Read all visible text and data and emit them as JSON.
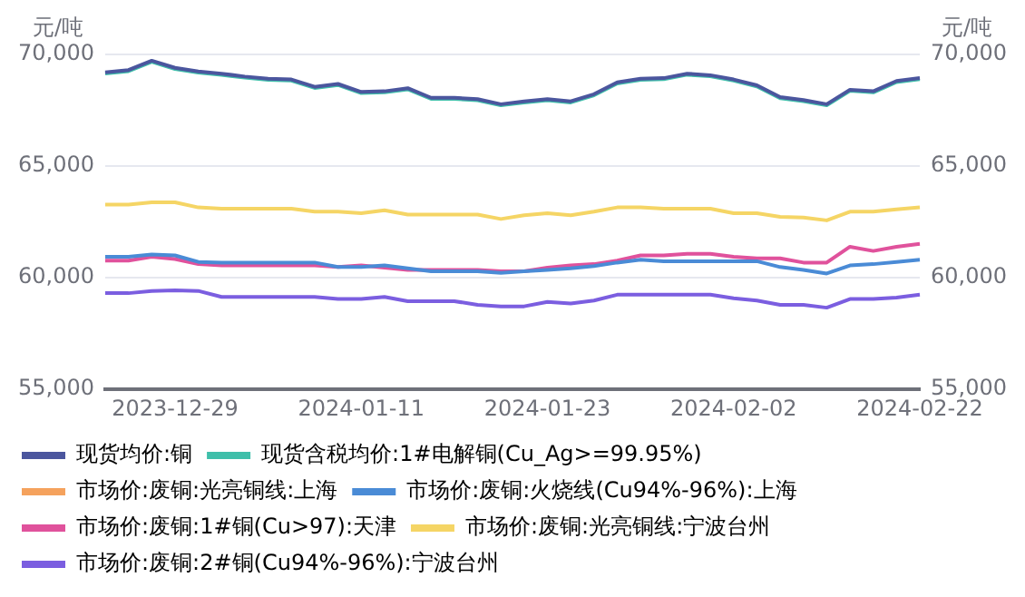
{
  "chart_data": {
    "type": "line",
    "ylabel": "元/吨",
    "y2label": "元/吨",
    "categories": [
      null,
      null,
      null,
      "2023-12-29",
      null,
      null,
      null,
      null,
      null,
      null,
      null,
      "2024-01-11",
      null,
      null,
      null,
      null,
      null,
      null,
      null,
      "2024-01-23",
      null,
      null,
      null,
      null,
      null,
      null,
      null,
      "2024-02-02",
      null,
      null,
      null,
      null,
      null,
      null,
      null,
      "2024-02-22"
    ],
    "ylim": [
      55000,
      70000
    ],
    "yticks": [
      {
        "value": 55000,
        "label": "55,000"
      },
      {
        "value": 60000,
        "label": "60,000"
      },
      {
        "value": 65000,
        "label": "65,000"
      },
      {
        "value": 70000,
        "label": "70,000"
      }
    ],
    "y2lim": [
      55000,
      70000
    ],
    "y2ticks": [
      {
        "value": 55000,
        "label": "55,000"
      },
      {
        "value": 60000,
        "label": "60,000"
      },
      {
        "value": 65000,
        "label": "65,000"
      },
      {
        "value": 70000,
        "label": "70,000"
      }
    ],
    "grid": "y",
    "legend": "bottom",
    "marker": "none",
    "line_style": "solid",
    "series": [
      {
        "name": "现货均价:铜",
        "color": "#4b569e",
        "values": [
          69200,
          69300,
          69720,
          69400,
          69240,
          69140,
          69010,
          68910,
          68880,
          68550,
          68680,
          68320,
          68350,
          68490,
          68060,
          68060,
          68000,
          67770,
          67900,
          68000,
          67900,
          68220,
          68750,
          68910,
          68940,
          69140,
          69070,
          68880,
          68620,
          68090,
          67960,
          67770,
          68420,
          68350,
          68810,
          68940
        ]
      },
      {
        "name": "现货含税均价:1#电解铜(Cu_Ag>=99.95%)",
        "color": "#3fbfaa",
        "values": [
          69150,
          69250,
          69670,
          69350,
          69190,
          69090,
          68960,
          68860,
          68830,
          68500,
          68630,
          68270,
          68300,
          68440,
          68010,
          68010,
          67950,
          67720,
          67850,
          67950,
          67850,
          68170,
          68700,
          68860,
          68890,
          69090,
          69020,
          68830,
          68570,
          68040,
          67910,
          67720,
          68370,
          68300,
          68760,
          68890
        ]
      },
      {
        "name": "市场价:废铜:光亮铜线:上海",
        "color": "#f5a25d",
        "values": [
          null,
          null,
          null,
          null,
          null,
          null,
          null,
          null,
          null,
          null,
          null,
          null,
          null,
          null,
          null,
          null,
          null,
          null,
          null,
          null,
          null,
          null,
          null,
          null,
          null,
          null,
          null,
          null,
          null,
          null,
          null,
          null,
          null,
          null,
          null,
          null
        ]
      },
      {
        "name": "市场价:废铜:火烧线(Cu94%-96%):上海",
        "color": "#4a8bd6",
        "values": [
          60940,
          60940,
          61040,
          61000,
          60710,
          60680,
          60680,
          60680,
          60680,
          60680,
          60480,
          60480,
          60550,
          60420,
          60290,
          60290,
          60290,
          60220,
          60290,
          60350,
          60420,
          60520,
          60680,
          60810,
          60740,
          60740,
          60740,
          60740,
          60740,
          60480,
          60350,
          60190,
          60550,
          60610,
          60710,
          60810
        ]
      },
      {
        "name": "市场价:废铜:1#铜(Cu>97):天津",
        "color": "#e0529c",
        "values": [
          60770,
          60770,
          60940,
          60840,
          60610,
          60550,
          60550,
          60550,
          60550,
          60550,
          60480,
          60550,
          60450,
          60350,
          60350,
          60350,
          60350,
          60290,
          60290,
          60450,
          60550,
          60610,
          60770,
          61000,
          61000,
          61070,
          61070,
          60940,
          60870,
          60870,
          60680,
          60680,
          61390,
          61200,
          61390,
          61520
        ]
      },
      {
        "name": "市场价:废铜:光亮铜线:宁波台州",
        "color": "#f5d565",
        "values": [
          63280,
          63280,
          63380,
          63380,
          63150,
          63090,
          63090,
          63090,
          63090,
          62960,
          62960,
          62890,
          63020,
          62830,
          62830,
          62830,
          62830,
          62630,
          62800,
          62890,
          62800,
          62960,
          63150,
          63150,
          63090,
          63090,
          63090,
          62890,
          62890,
          62730,
          62700,
          62570,
          62960,
          62960,
          63060,
          63150
        ]
      },
      {
        "name": "市场价:废铜:2#铜(Cu94%-96%):宁波台州",
        "color": "#7b5ee0",
        "values": [
          59310,
          59310,
          59410,
          59440,
          59410,
          59140,
          59140,
          59140,
          59140,
          59140,
          59050,
          59050,
          59140,
          58950,
          58950,
          58950,
          58790,
          58720,
          58720,
          58920,
          58850,
          58980,
          59240,
          59240,
          59240,
          59240,
          59240,
          59080,
          58980,
          58790,
          58790,
          58660,
          59050,
          59050,
          59110,
          59240
        ]
      }
    ]
  }
}
